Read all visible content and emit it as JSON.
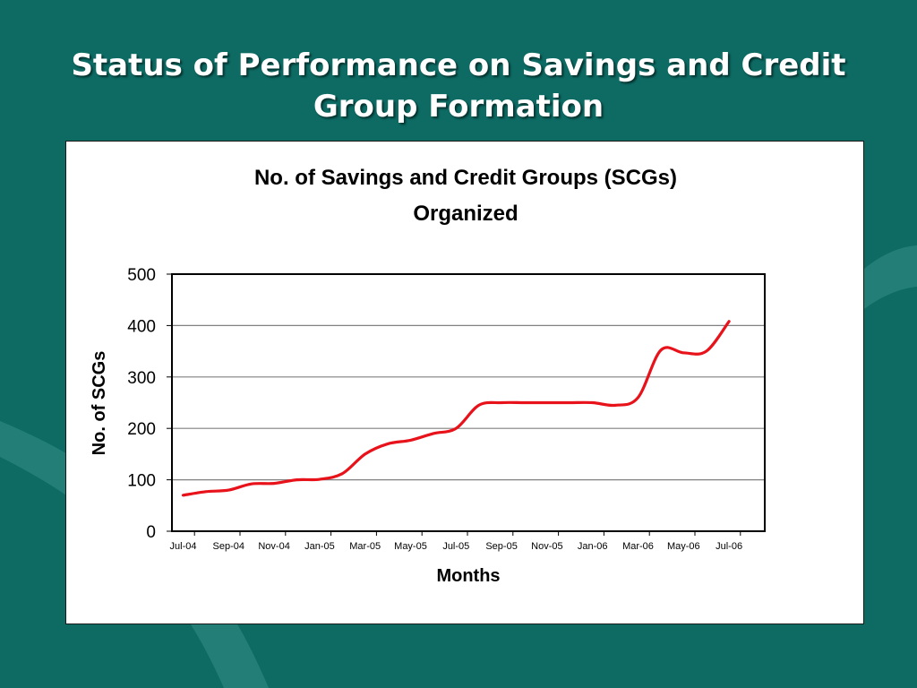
{
  "slide": {
    "title_line1": "Status of Performance on Savings and Credit",
    "title_line2": "Group Formation"
  },
  "colors": {
    "background": "#0d6b64",
    "series": "#e8121b",
    "frame": "#ffffff"
  },
  "chart_data": {
    "type": "line",
    "title_line1": "No. of Savings and Credit Groups (SCGs)",
    "title_line2": "Organized",
    "xlabel": "Months",
    "ylabel": "No. of SCGs",
    "ylim": [
      0,
      500
    ],
    "yticks": [
      "0",
      "100",
      "200",
      "300",
      "400",
      "500"
    ],
    "grid": "horizontal",
    "legend": "none",
    "x_tick_labels": [
      "Jul-04",
      "Sep-04",
      "Nov-04",
      "Jan-05",
      "Mar-05",
      "May-05",
      "Jul-05",
      "Sep-05",
      "Nov-05",
      "Jan-06",
      "Mar-06",
      "May-06",
      "Jul-06"
    ],
    "x": [
      "Jul-04",
      "Aug-04",
      "Sep-04",
      "Oct-04",
      "Nov-04",
      "Dec-04",
      "Jan-05",
      "Feb-05",
      "Mar-05",
      "Apr-05",
      "May-05",
      "Jun-05",
      "Jul-05",
      "Aug-05",
      "Sep-05",
      "Oct-05",
      "Nov-05",
      "Dec-05",
      "Jan-06",
      "Feb-06",
      "Mar-06",
      "Apr-06",
      "May-06",
      "Jun-06",
      "Jul-06"
    ],
    "series": [
      {
        "values": [
          70,
          77,
          80,
          92,
          93,
          100,
          101,
          112,
          150,
          170,
          177,
          190,
          200,
          245,
          250,
          250,
          250,
          250,
          250,
          245,
          260,
          352,
          347,
          350,
          408
        ]
      }
    ]
  }
}
